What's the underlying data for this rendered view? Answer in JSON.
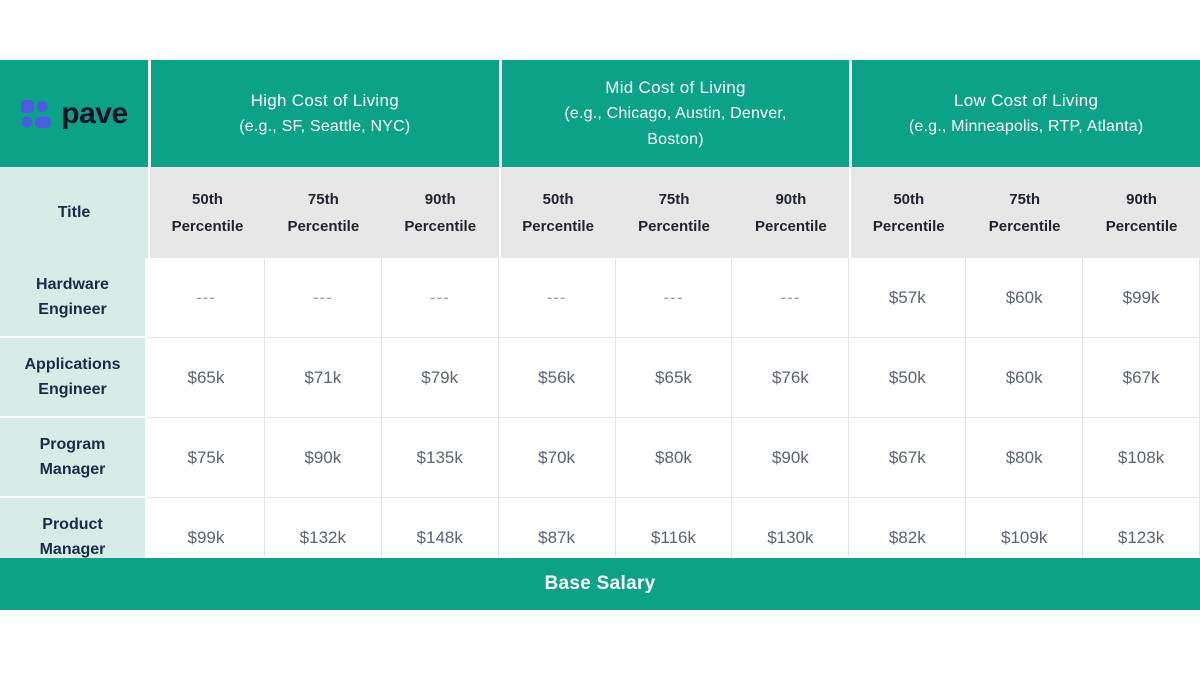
{
  "brand": {
    "name": "pave"
  },
  "colors": {
    "teal": "#0ba287",
    "mint": "#d8ece7",
    "gray_header": "#e7e7e7",
    "navy": "#1b2a45",
    "logo_blue": "#4b5ce0"
  },
  "footer": {
    "label": "Base Salary"
  },
  "chart_data": {
    "type": "table",
    "title": "Base Salary",
    "title_column_header": "Title",
    "groups": [
      {
        "title": "High Cost of Living",
        "subtitle": "(e.g., SF, Seattle, NYC)"
      },
      {
        "title": "Mid Cost of Living",
        "subtitle": "(e.g., Chicago, Austin, Denver, Boston)"
      },
      {
        "title": "Low Cost of Living",
        "subtitle": "(e.g., Minneapolis, RTP, Atlanta)"
      }
    ],
    "percentiles": [
      "50th",
      "75th",
      "90th"
    ],
    "percentile_word": "Percentile",
    "rows": [
      {
        "title": "Hardware Engineer",
        "values": [
          "---",
          "---",
          "---",
          "---",
          "---",
          "---",
          "$57k",
          "$60k",
          "$99k"
        ]
      },
      {
        "title": "Applications Engineer",
        "values": [
          "$65k",
          "$71k",
          "$79k",
          "$56k",
          "$65k",
          "$76k",
          "$50k",
          "$60k",
          "$67k"
        ]
      },
      {
        "title": "Program Manager",
        "values": [
          "$75k",
          "$90k",
          "$135k",
          "$70k",
          "$80k",
          "$90k",
          "$67k",
          "$80k",
          "$108k"
        ]
      },
      {
        "title": "Product Manager",
        "values": [
          "$99k",
          "$132k",
          "$148k",
          "$87k",
          "$116k",
          "$130k",
          "$82k",
          "$109k",
          "$123k"
        ]
      }
    ]
  }
}
